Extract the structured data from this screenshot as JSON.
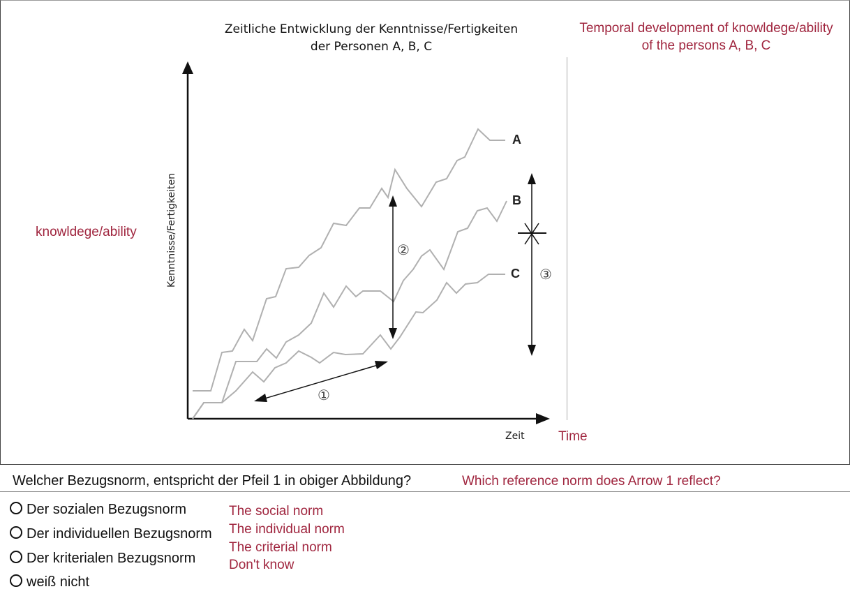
{
  "diagram": {
    "title_de": [
      "Zeitliche Entwicklung der Kenntnisse/Fertigkeiten",
      "der Personen A, B, C"
    ],
    "title_en": [
      "Temporal development of knowldege/ability",
      "of the persons A, B, C"
    ],
    "y_axis_label_de": "Kenntnisse/Fertigkeiten",
    "y_axis_label_en": "knowldege/ability",
    "x_axis_label_de": "Zeit",
    "x_axis_label_en": "Time",
    "curve_labels": {
      "a": "A",
      "b": "B",
      "c": "C"
    },
    "arrow_labels": {
      "one": "①",
      "two": "②",
      "three": "③"
    },
    "colors": {
      "line": "#b0b0b0",
      "axis": "#111111",
      "accent": "#a0263f"
    }
  },
  "question": {
    "text_de": "Welcher Bezugsnorm, entspricht der Pfeil 1 in obiger Abbildung?",
    "text_en": "Which reference norm does Arrow 1 reflect?",
    "options": [
      {
        "de": "Der sozialen Bezugsnorm",
        "en": "The social norm"
      },
      {
        "de": "Der individuellen Bezugsnorm",
        "en": "The individual norm"
      },
      {
        "de": "Der kriterialen Bezugsnorm",
        "en": "The criterial norm"
      },
      {
        "de": "weiß nicht",
        "en": "Don't know"
      }
    ]
  }
}
